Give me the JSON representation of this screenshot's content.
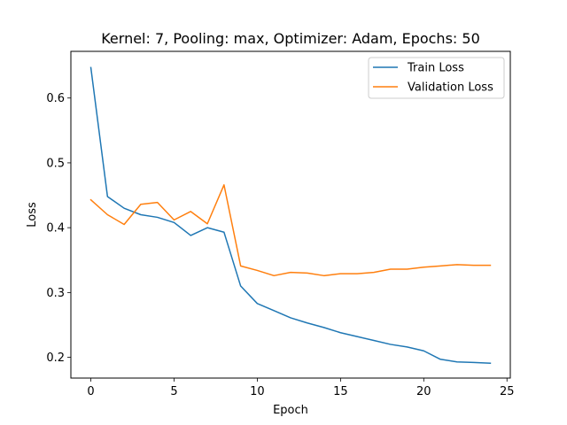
{
  "chart_data": {
    "type": "line",
    "title": "Kernel: 7, Pooling: max, Optimizer: Adam, Epochs: 50",
    "xlabel": "Epoch",
    "ylabel": "Loss",
    "xlim": [
      -1.2,
      25.2
    ],
    "ylim": [
      0.168,
      0.672
    ],
    "xticks": [
      0,
      5,
      10,
      15,
      20,
      25
    ],
    "yticks": [
      0.2,
      0.3,
      0.4,
      0.5,
      0.6
    ],
    "grid": false,
    "legend_position": "top-right",
    "x": [
      0,
      1,
      2,
      3,
      4,
      5,
      6,
      7,
      8,
      9,
      10,
      11,
      12,
      13,
      14,
      15,
      16,
      17,
      18,
      19,
      20,
      21,
      22,
      23,
      24
    ],
    "series": [
      {
        "name": "Train Loss",
        "color": "#1f77b4",
        "values": [
          0.647,
          0.448,
          0.43,
          0.42,
          0.416,
          0.408,
          0.388,
          0.4,
          0.393,
          0.31,
          0.283,
          0.272,
          0.261,
          0.253,
          0.246,
          0.238,
          0.232,
          0.226,
          0.22,
          0.216,
          0.21,
          0.197,
          0.193,
          0.192,
          0.191
        ]
      },
      {
        "name": "Validation Loss",
        "color": "#ff7f0e",
        "values": [
          0.443,
          0.42,
          0.405,
          0.436,
          0.439,
          0.412,
          0.425,
          0.406,
          0.466,
          0.341,
          0.334,
          0.326,
          0.331,
          0.33,
          0.326,
          0.329,
          0.329,
          0.331,
          0.336,
          0.336,
          0.339,
          0.341,
          0.343,
          0.342,
          0.342
        ]
      }
    ]
  }
}
